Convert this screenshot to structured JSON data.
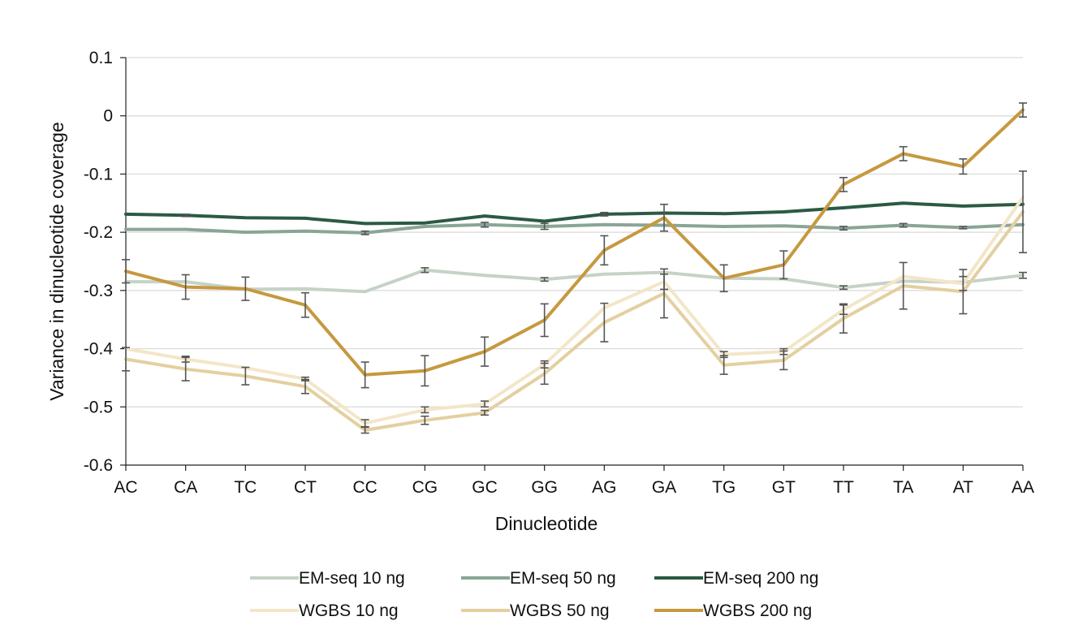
{
  "chart_data": {
    "type": "line",
    "title": "",
    "xlabel": "Dinucleotide",
    "ylabel": "Variance in dinucleotide coverage",
    "ylim": [
      -0.6,
      0.1
    ],
    "yticks": [
      0.1,
      0,
      -0.1,
      -0.2,
      -0.3,
      -0.4,
      -0.5,
      -0.6
    ],
    "ytick_labels": [
      "0.1",
      "0",
      "-0.1",
      "-0.2",
      "-0.3",
      "-0.4",
      "-0.5",
      "-0.6"
    ],
    "grid": "horizontal",
    "legend_position": "bottom",
    "categories": [
      "AC",
      "CA",
      "TC",
      "CT",
      "CC",
      "CG",
      "GC",
      "GG",
      "AG",
      "GA",
      "TG",
      "GT",
      "TT",
      "TA",
      "AT",
      "AA"
    ],
    "series": [
      {
        "name": "EM-seq 10 ng",
        "color": "#c5d3c7",
        "values": [
          -0.285,
          -0.285,
          -0.298,
          -0.297,
          -0.302,
          -0.265,
          -0.274,
          -0.281,
          -0.272,
          -0.269,
          -0.279,
          -0.28,
          -0.295,
          -0.284,
          -0.286,
          -0.274
        ],
        "errors": [
          0,
          0,
          0,
          0,
          0,
          0.004,
          0,
          0.003,
          0,
          0,
          0,
          0,
          0.003,
          0,
          0,
          0.005
        ]
      },
      {
        "name": "EM-seq 50 ng",
        "color": "#8aa596",
        "values": [
          -0.195,
          -0.195,
          -0.2,
          -0.198,
          -0.201,
          -0.19,
          -0.187,
          -0.19,
          -0.187,
          -0.188,
          -0.19,
          -0.189,
          -0.193,
          -0.188,
          -0.192,
          -0.187
        ],
        "errors": [
          0,
          0,
          0,
          0,
          0.003,
          0,
          0.004,
          0.005,
          0,
          0,
          0,
          0,
          0.003,
          0.003,
          0.002,
          0
        ]
      },
      {
        "name": "EM-seq 200 ng",
        "color": "#2b5a44",
        "values": [
          -0.169,
          -0.171,
          -0.175,
          -0.176,
          -0.185,
          -0.184,
          -0.172,
          -0.181,
          -0.169,
          -0.167,
          -0.168,
          -0.165,
          -0.158,
          -0.15,
          -0.155,
          -0.152
        ],
        "errors": [
          0,
          0.002,
          0,
          0,
          0,
          0,
          0,
          0,
          0.003,
          0,
          0,
          0,
          0,
          0,
          0,
          0
        ]
      },
      {
        "name": "WGBS 10 ng",
        "color": "#f3e6c8",
        "values": [
          -0.4,
          -0.418,
          -0.433,
          -0.452,
          -0.528,
          -0.505,
          -0.495,
          -0.427,
          -0.33,
          -0.285,
          -0.41,
          -0.405,
          -0.333,
          -0.276,
          -0.288,
          -0.14
        ],
        "errors": [
          0,
          0.005,
          0,
          0.003,
          0.006,
          0.005,
          0.005,
          0.006,
          0,
          0.013,
          0.005,
          0.005,
          0.008,
          0,
          0.012,
          0
        ]
      },
      {
        "name": "WGBS 50 ng",
        "color": "#e4cfa0",
        "values": [
          -0.418,
          -0.435,
          -0.447,
          -0.465,
          -0.54,
          -0.523,
          -0.51,
          -0.443,
          -0.355,
          -0.305,
          -0.428,
          -0.42,
          -0.348,
          -0.292,
          -0.302,
          -0.165
        ],
        "errors": [
          0.02,
          0.02,
          0.015,
          0.012,
          0.005,
          0.007,
          0.004,
          0.018,
          0.033,
          0.042,
          0.016,
          0.016,
          0.025,
          0.04,
          0.038,
          0.07
        ]
      },
      {
        "name": "WGBS 200 ng",
        "color": "#c6993f",
        "values": [
          -0.267,
          -0.294,
          -0.297,
          -0.325,
          -0.445,
          -0.438,
          -0.405,
          -0.351,
          -0.231,
          -0.175,
          -0.279,
          -0.256,
          -0.118,
          -0.065,
          -0.087,
          0.01
        ],
        "errors": [
          0.02,
          0.021,
          0.02,
          0.021,
          0.022,
          0.026,
          0.025,
          0.028,
          0.025,
          0.023,
          0.023,
          0.024,
          0.012,
          0.012,
          0.013,
          0.012
        ]
      }
    ]
  }
}
